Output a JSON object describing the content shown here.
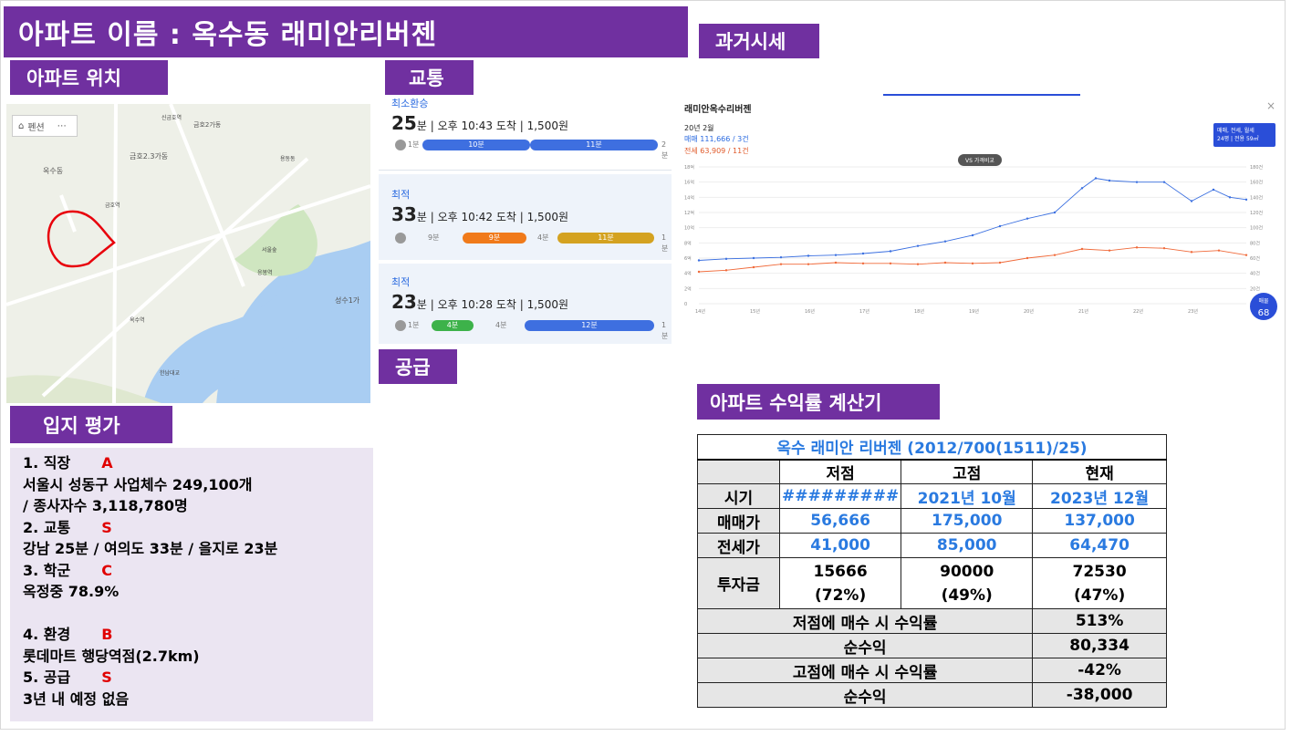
{
  "title": "아파트 이름 : 옥수동 래미안리버젠",
  "tags": {
    "location": "아파트 위치",
    "traffic": "교통",
    "past_price": "과거시세",
    "supply": "공급",
    "evaluation": "입지 평가",
    "calculator": "아파트 수익률 계산기"
  },
  "map": {
    "chip": "펜션",
    "labels": [
      "신금호역",
      "금호2가동",
      "금호2.3가동",
      "금호역",
      "옥수동",
      "옥수역",
      "서울숲",
      "성수1가",
      "한남대교",
      "용동동",
      "응봉역"
    ]
  },
  "transit": {
    "routes": [
      {
        "label": "최소환승",
        "minutes": "25",
        "unit": "분",
        "detail": "오후 10:43 도착 | 1,500원",
        "segments": [
          "1분",
          "10분",
          "11분",
          "2분"
        ]
      },
      {
        "label": "최적",
        "minutes": "33",
        "unit": "분",
        "detail": "오후 10:42 도착 | 1,500원",
        "segments": [
          "9분",
          "9분",
          "4분",
          "11분",
          "1분"
        ]
      },
      {
        "label": "최적",
        "minutes": "23",
        "unit": "분",
        "detail": "오후 10:28 도착 | 1,500원",
        "segments": [
          "1분",
          "4분",
          "4분",
          "12분",
          "1분"
        ]
      }
    ]
  },
  "price_chart": {
    "title": "래미안옥수리버젠",
    "month": "20년 2월",
    "sale": "매매 111,666 / 3건",
    "jeonse": "전세 63,909 / 11건",
    "select": "매매, 전세, 월세",
    "select_sub": "24평 | 전용 59㎡",
    "vs": "VS 가격비교",
    "badge_label": "매물",
    "badge_value": "68",
    "close": "×"
  },
  "chart_data": {
    "type": "line",
    "x_ticks": [
      "14년",
      "15년",
      "16년",
      "17년",
      "18년",
      "19년",
      "20년",
      "21년",
      "22년",
      "23년"
    ],
    "y_left_ticks": [
      "18억",
      "16억",
      "14억",
      "12억",
      "10억",
      "8억",
      "6억",
      "4억",
      "2억",
      "0"
    ],
    "y_right_ticks": [
      "180건",
      "160건",
      "140건",
      "120건",
      "100건",
      "80건",
      "60건",
      "40건",
      "20건",
      "0"
    ],
    "ylim": [
      0,
      18
    ],
    "series": [
      {
        "name": "매매",
        "color": "#3a6fe0",
        "x": [
          14.0,
          14.5,
          15.0,
          15.5,
          16.0,
          16.5,
          17.0,
          17.5,
          18.0,
          18.5,
          19.0,
          19.5,
          20.0,
          20.5,
          21.0,
          21.25,
          21.5,
          22.0,
          22.5,
          23.0,
          23.4,
          23.7,
          24.0
        ],
        "values": [
          5.7,
          5.9,
          6.0,
          6.1,
          6.3,
          6.4,
          6.6,
          6.9,
          7.6,
          8.2,
          9.0,
          10.2,
          11.2,
          12.0,
          15.2,
          16.5,
          16.2,
          16.0,
          16.0,
          13.5,
          15.0,
          14.0,
          13.7
        ]
      },
      {
        "name": "전세",
        "color": "#f06a3a",
        "x": [
          14.0,
          14.5,
          15.0,
          15.5,
          16.0,
          16.5,
          17.0,
          17.5,
          18.0,
          18.5,
          19.0,
          19.5,
          20.0,
          20.5,
          21.0,
          21.5,
          22.0,
          22.5,
          23.0,
          23.5,
          24.0
        ],
        "values": [
          4.2,
          4.4,
          4.8,
          5.2,
          5.2,
          5.4,
          5.3,
          5.3,
          5.2,
          5.4,
          5.3,
          5.4,
          6.0,
          6.4,
          7.2,
          7.0,
          7.4,
          7.3,
          6.8,
          7.0,
          6.4
        ]
      }
    ]
  },
  "evaluation": {
    "items": [
      {
        "head": "1. 직장",
        "grade": "A",
        "lines": [
          "서울시 성동구 사업체수 249,100개",
          "/ 종사자수 3,118,780명"
        ]
      },
      {
        "head": "2. 교통",
        "grade": "S",
        "lines": [
          "강남 25분 / 여의도 33분 / 을지로 23분"
        ]
      },
      {
        "head": "3. 학군",
        "grade": "C",
        "lines": [
          "옥정중 78.9%",
          ""
        ]
      },
      {
        "head": "4. 환경",
        "grade": "B",
        "lines": [
          "롯데마트 행당역점(2.7km)"
        ]
      },
      {
        "head": "5. 공급",
        "grade": "S",
        "lines": [
          "3년 내 예정 없음"
        ]
      }
    ]
  },
  "calc": {
    "title": "옥수 래미안 리버젠 (2012/700(1511)/25)",
    "cols": [
      "저점",
      "고점",
      "현재"
    ],
    "rows": [
      {
        "label": "시기",
        "values": [
          "#########",
          "2021년 10월",
          "2023년 12월"
        ]
      },
      {
        "label": "매매가",
        "values": [
          "56,666",
          "175,000",
          "137,000"
        ]
      },
      {
        "label": "전세가",
        "values": [
          "41,000",
          "85,000",
          "64,470"
        ]
      },
      {
        "label": "투자금",
        "values": [
          "15666",
          "90000",
          "72530"
        ],
        "sub": [
          "(72%)",
          "(49%)",
          "(47%)"
        ]
      }
    ],
    "summary": [
      {
        "label": "저점에 매수 시 수익률",
        "value": "513%"
      },
      {
        "label": "순수익",
        "value": "80,334"
      },
      {
        "label": "고점에 매수 시 수익률",
        "value": "-42%"
      },
      {
        "label": "순수익",
        "value": "-38,000"
      }
    ]
  }
}
